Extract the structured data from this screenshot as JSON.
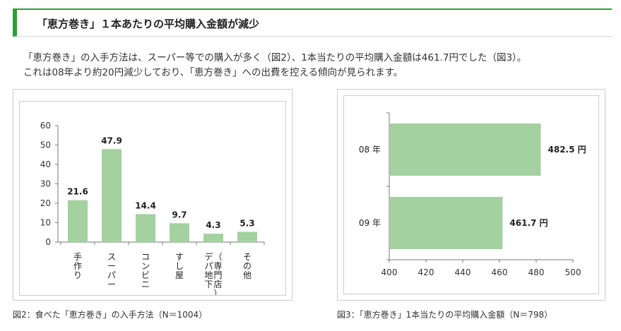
{
  "header": {
    "title": "「恵方巻き」１本あたりの平均購入金額が減少"
  },
  "intro": {
    "line1": "「恵方巻き」の入手方法は、スーパー等での購入が多く（図2）、1本当たりの平均購入金額は461.7円でした（図3）。",
    "line2": "これは08年より約20円減少しており、「恵方巻き」への出費を控える傾向が見られます。"
  },
  "captions": {
    "fig2": "図2：食べた「恵方巻き」の入手方法（N＝1004）",
    "fig3": "図3：「恵方巻き」1本当たりの平均購入金額（N＝798）"
  },
  "colors": {
    "bar": "#a3d1a0",
    "accent": "#2d9e3a",
    "frame": "#cccccc"
  },
  "chart_data": [
    {
      "type": "bar",
      "orientation": "vertical",
      "categories": [
        "手作り",
        "スーパー",
        "コンビニ",
        "すし屋",
        "デパ地下（専門店）",
        "その他"
      ],
      "category_label_columns": [
        [
          "手作り"
        ],
        [
          "スーパー"
        ],
        [
          "コンビニ"
        ],
        [
          "すし屋"
        ],
        [
          "デパ地下",
          "（専門店）"
        ],
        [
          "その他"
        ]
      ],
      "values": [
        21.6,
        47.9,
        14.4,
        9.7,
        4.3,
        5.3
      ],
      "value_labels": [
        "21.6",
        "47.9",
        "14.4",
        "9.7",
        "4.3",
        "5.3"
      ],
      "ylim": [
        0,
        60
      ],
      "yticks": [
        "0",
        "10",
        "20",
        "30",
        "40",
        "50",
        "60"
      ],
      "grid": false,
      "legend": "none"
    },
    {
      "type": "bar",
      "orientation": "horizontal",
      "categories": [
        "08 年",
        "09 年"
      ],
      "values": [
        482.5,
        461.7
      ],
      "value_labels": [
        "482.5 円",
        "461.7 円"
      ],
      "xlim": [
        400,
        500
      ],
      "xticks": [
        "400",
        "420",
        "440",
        "460",
        "480",
        "500"
      ],
      "grid": false,
      "legend": "none"
    }
  ]
}
